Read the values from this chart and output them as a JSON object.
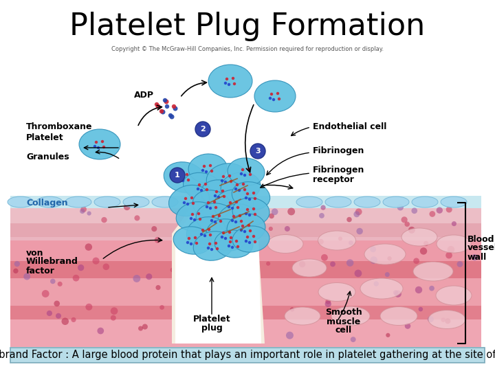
{
  "title": "Platelet Plug Formation",
  "copyright_text": "Copyright © The McGraw-Hill Companies, Inc. Permission required for reproduction or display.",
  "caption_text": "Von Willebrand Factor : A large blood protein that plays an important role in platelet gathering at the site of a wound",
  "caption_bg": "#b8dde8",
  "caption_box_edge": "#7aaabb",
  "bg_color": "#ffffff",
  "title_fontsize": 32,
  "caption_fontsize": 10.5
}
